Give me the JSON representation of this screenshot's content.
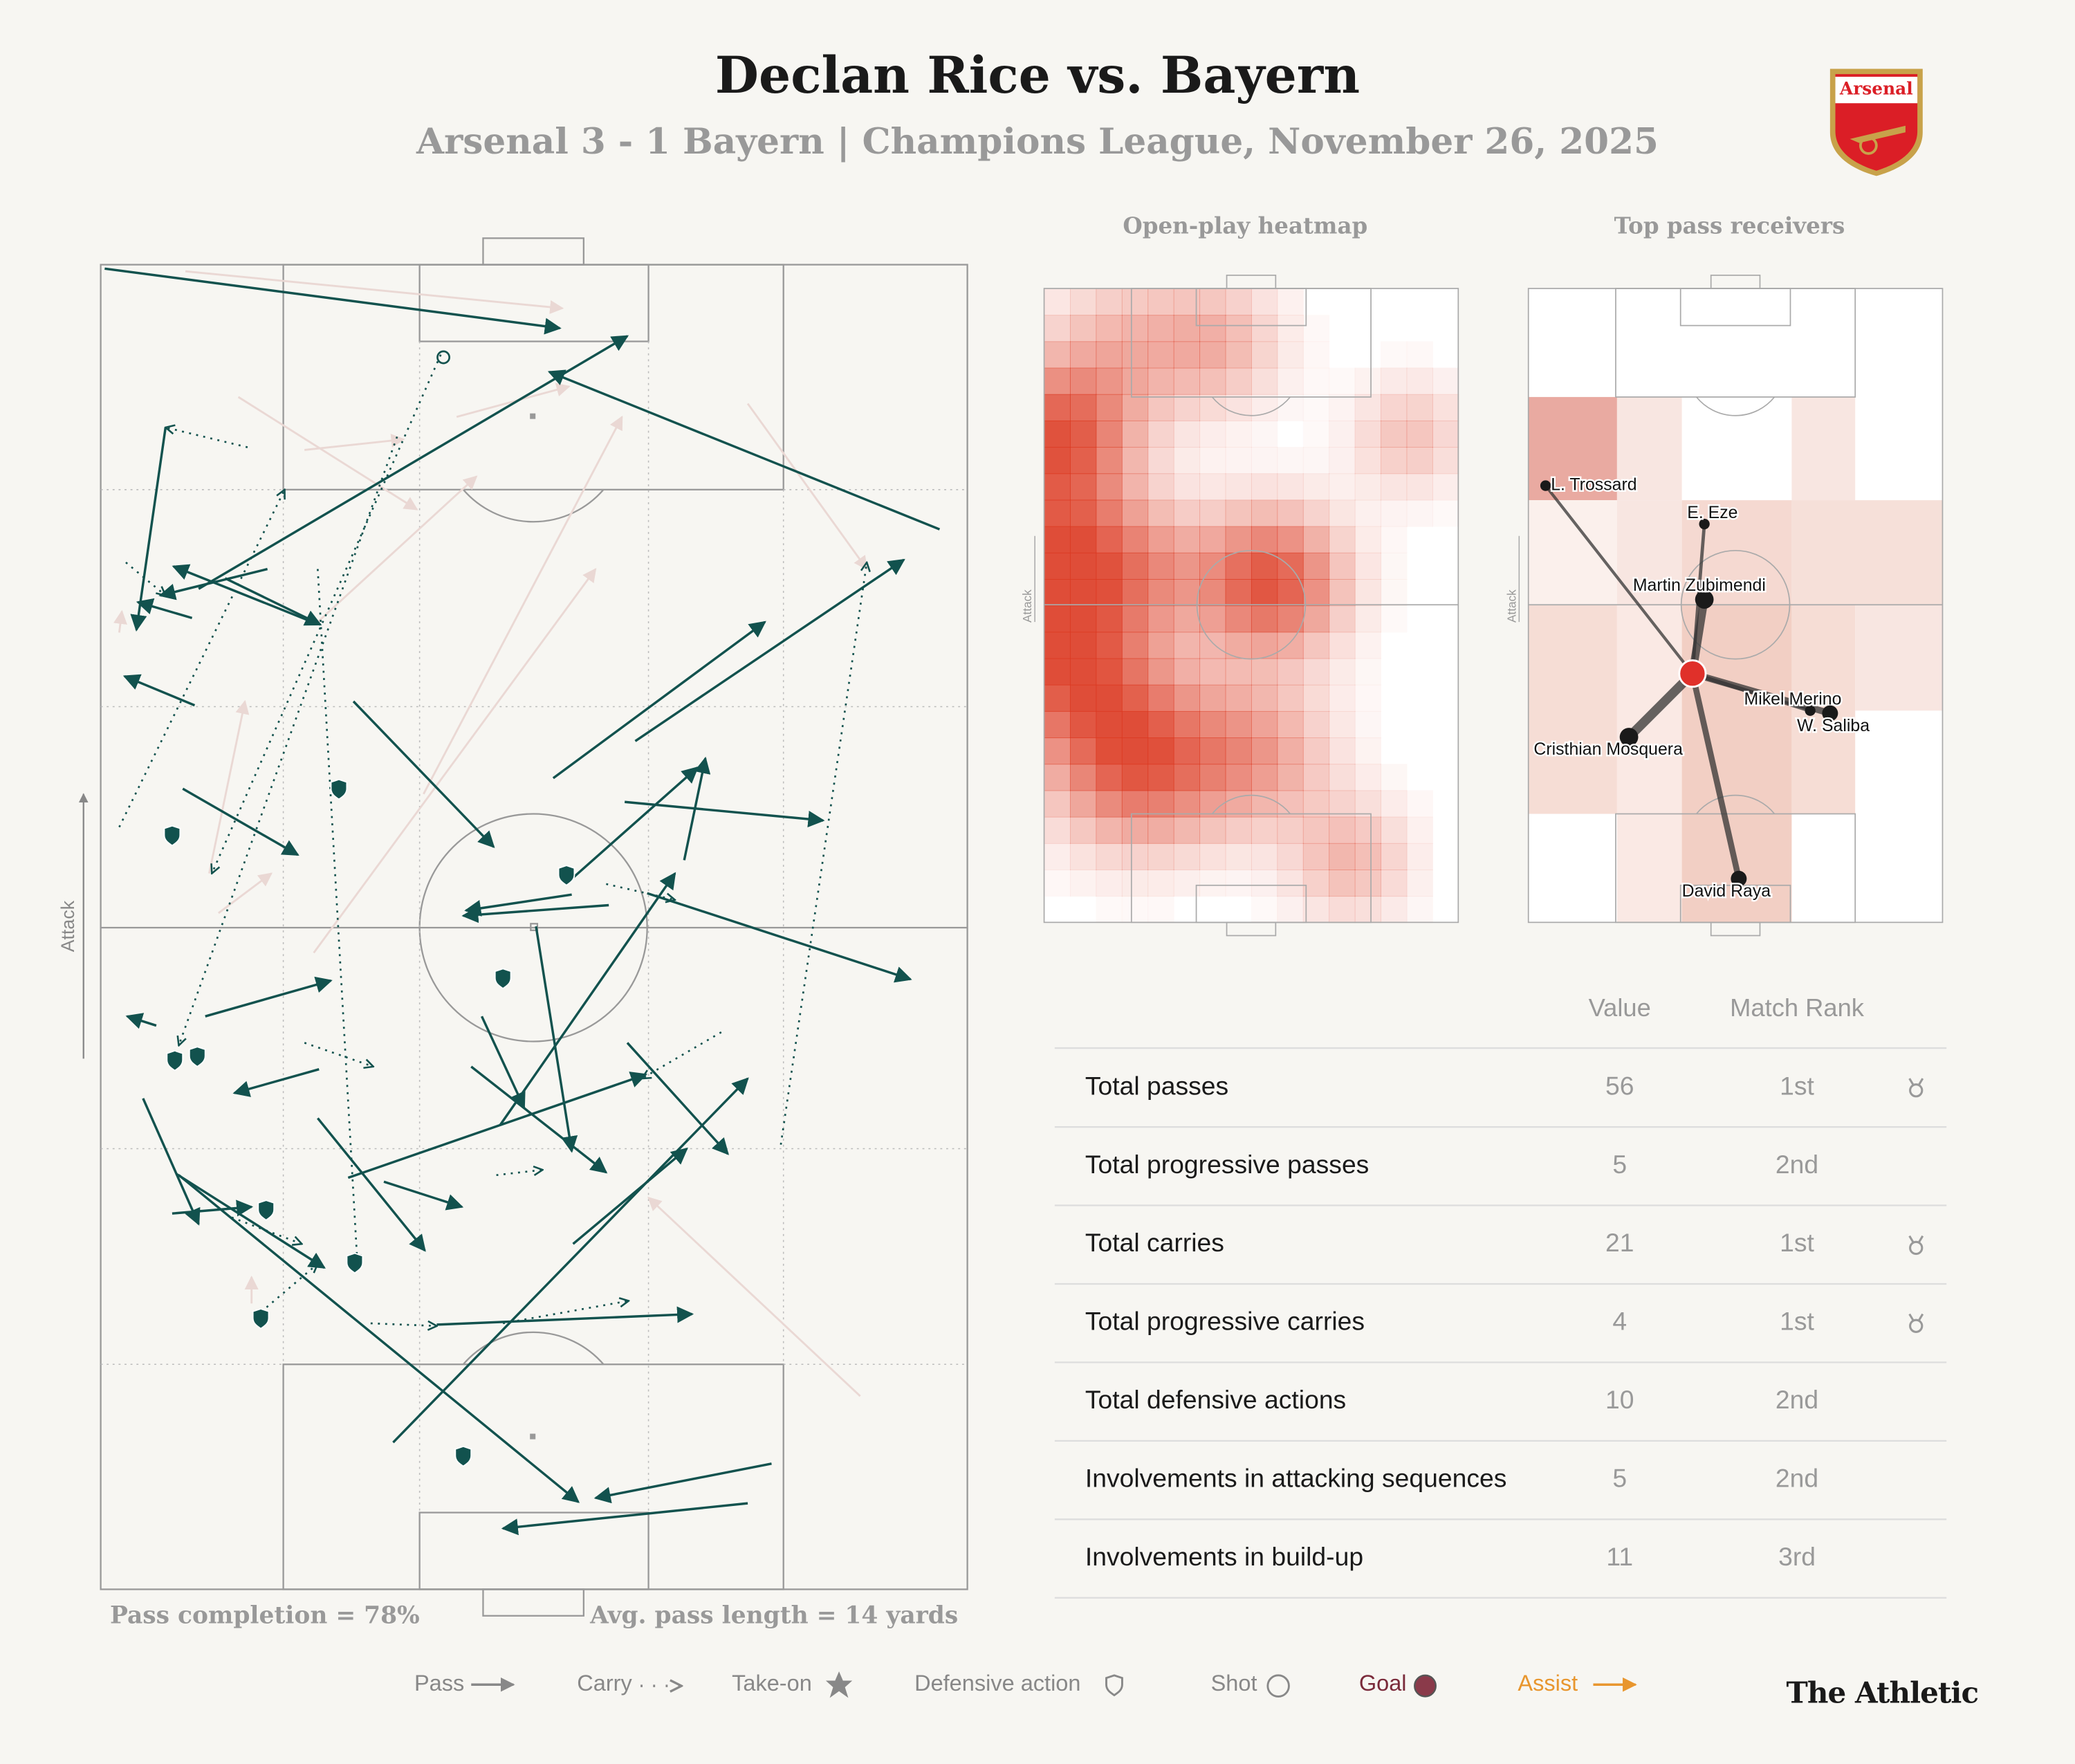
{
  "header": {
    "title": "Declan Rice vs. Bayern",
    "subtitle": "Arsenal 3 - 1 Bayern | Champions League, November 26, 2025",
    "crest": "Arsenal"
  },
  "pitch": {
    "attack": "Attack",
    "pass_completion": "Pass completion = 78%",
    "avg_pass_length": "Avg. pass length = 14 yards"
  },
  "heatmap": {
    "title": "Open-play heatmap",
    "attack": "Attack"
  },
  "receivers": {
    "title": "Top pass receivers",
    "attack": "Attack",
    "players": [
      "L. Trossard",
      "E. Eze",
      "Martin Zubimendi",
      "Mikel Merino",
      "W. Saliba",
      "Cristhian Mosquera",
      "David Raya"
    ]
  },
  "table": {
    "columns": [
      "Value",
      "Match Rank"
    ],
    "rows": [
      [
        "Total passes",
        56,
        "1st"
      ],
      [
        "Total progressive passes",
        5,
        "2nd"
      ],
      [
        "Total carries",
        21,
        "1st"
      ],
      [
        "Total progressive carries",
        4,
        "1st"
      ],
      [
        "Total defensive actions",
        10,
        "2nd"
      ],
      [
        "Involvements in attacking sequences",
        5,
        "2nd"
      ],
      [
        "Involvements in build-up",
        11,
        "3rd"
      ]
    ]
  },
  "legend": [
    "Pass",
    "Carry",
    "Take-on",
    "Defensive action",
    "Shot",
    "Goal",
    "Assist"
  ],
  "footer": {
    "brand": "The Athletic"
  }
}
